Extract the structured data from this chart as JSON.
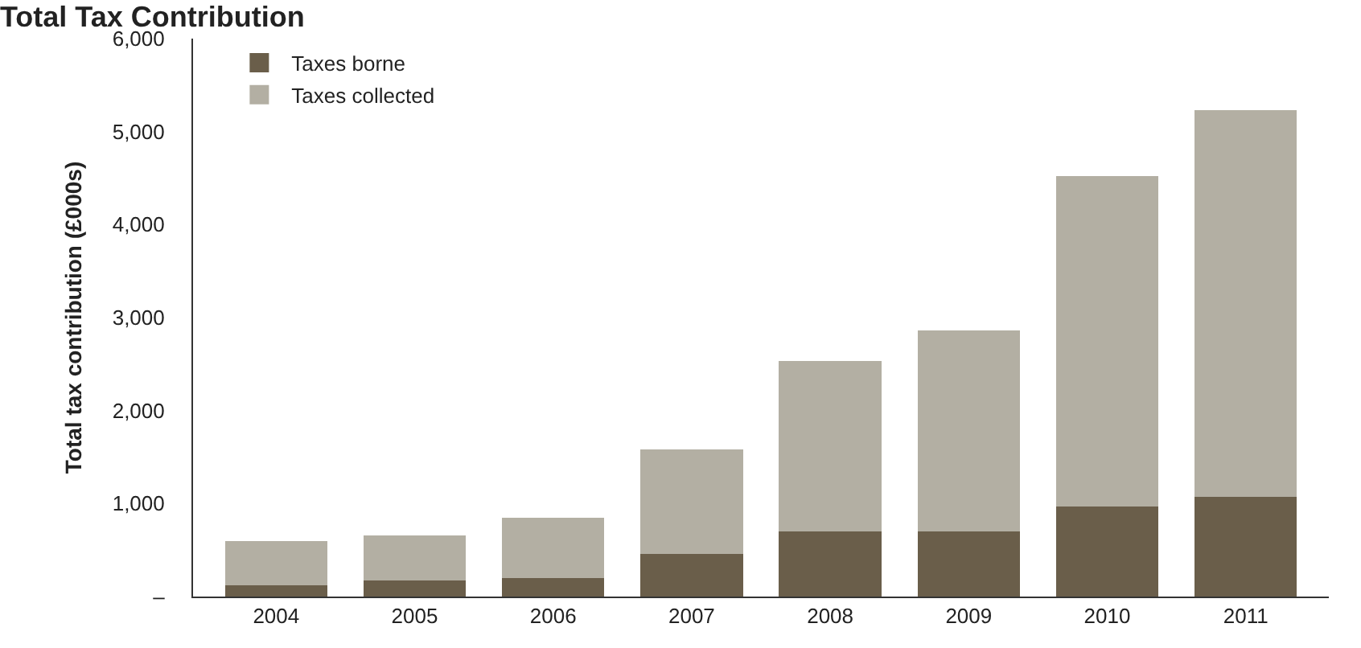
{
  "chart_data": {
    "type": "bar",
    "title": "Total Tax Contribution",
    "ylabel": "Total tax contribution (£000s)",
    "categories": [
      "2004",
      "2005",
      "2006",
      "2007",
      "2008",
      "2009",
      "2010",
      "2011"
    ],
    "stacked": true,
    "series": [
      {
        "name": "Taxes borne",
        "color": "#6a5e4a",
        "values": [
          120,
          170,
          200,
          460,
          700,
          700,
          970,
          1070
        ]
      },
      {
        "name": "Taxes collected",
        "color": "#b3afa3",
        "values": [
          480,
          490,
          650,
          1120,
          1830,
          2160,
          3550,
          4160
        ]
      }
    ],
    "ylim": [
      0,
      6000
    ],
    "yticks": [
      {
        "value": 0,
        "label": "–"
      },
      {
        "value": 1000,
        "label": "1,000"
      },
      {
        "value": 2000,
        "label": "2,000"
      },
      {
        "value": 3000,
        "label": "3,000"
      },
      {
        "value": 4000,
        "label": "4,000"
      },
      {
        "value": 5000,
        "label": "5,000"
      },
      {
        "value": 6000,
        "label": "6,000"
      }
    ],
    "legend": "top left"
  }
}
